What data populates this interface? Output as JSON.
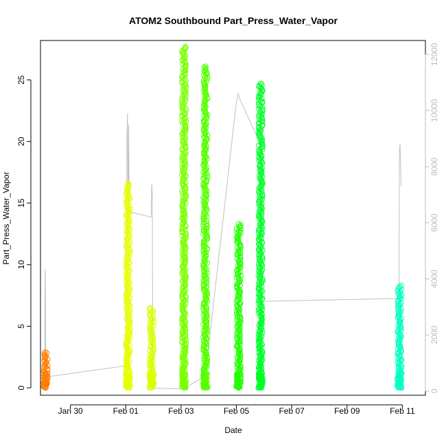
{
  "chart_data": {
    "type": "scatter",
    "title": "ATOM2 Southbound Part_Press_Water_Vapor",
    "xlabel": "Date",
    "ylabel": "Part_Press_Water_Vapor",
    "x_ticks": [
      "Jan 30",
      "Feb 01",
      "Feb 03",
      "Feb 05",
      "Feb 07",
      "Feb 09",
      "Feb 11"
    ],
    "y_ticks": [
      "0",
      "5",
      "10",
      "15",
      "20",
      "25"
    ],
    "y_right_ticks": [
      "0",
      "2000",
      "4000",
      "6000",
      "8000",
      "10000",
      "12000"
    ],
    "xlim": [
      "2020-01-28T22:00",
      "2020-02-11T20:00"
    ],
    "ylim": [
      -0.6,
      28.2
    ],
    "ylim_right": [
      -150,
      12500
    ],
    "colors": {
      "axis": "#000000",
      "right_axis": "#bbbbbb",
      "altitude_line": "#c0c0c0"
    },
    "bursts": [
      {
        "t": "2020-01-29T02:30",
        "y_min": 0.0,
        "y_max": 2.9,
        "color": "#ff7f00"
      },
      {
        "t": "2020-02-01T02:00",
        "y_min": 0.0,
        "y_max": 16.6,
        "color": "#e5ff00"
      },
      {
        "t": "2020-02-01T22:30",
        "y_min": 0.0,
        "y_max": 6.5,
        "color": "#d9ff00"
      },
      {
        "t": "2020-02-03T02:30",
        "y_min": 0.0,
        "y_max": 27.7,
        "color": "#7aff00"
      },
      {
        "t": "2020-02-03T21:00",
        "y_min": 0.0,
        "y_max": 26.1,
        "color": "#55ff00"
      },
      {
        "t": "2020-02-05T02:00",
        "y_min": 0.0,
        "y_max": 13.3,
        "color": "#22ff00"
      },
      {
        "t": "2020-02-05T21:00",
        "y_min": 0.0,
        "y_max": 24.7,
        "color": "#00ff2a"
      },
      {
        "t": "2020-02-10T21:30",
        "y_min": 0.0,
        "y_max": 8.3,
        "color": "#00ffbf"
      }
    ],
    "altitude_series": {
      "name": "",
      "axis": "right",
      "points": [
        [
          "2020-01-29T01:30",
          50
        ],
        [
          "2020-01-29T01:45",
          1300
        ],
        [
          "2020-01-29T02:00",
          3900
        ],
        [
          "2020-01-29T02:15",
          4350
        ],
        [
          "2020-01-29T02:30",
          1100
        ],
        [
          "2020-01-29T02:45",
          500
        ],
        [
          "2020-02-01T00:00",
          900
        ],
        [
          "2020-02-01T01:00",
          9100
        ],
        [
          "2020-02-01T01:30",
          9900
        ],
        [
          "2020-02-01T02:00",
          5500
        ],
        [
          "2020-02-01T02:30",
          9500
        ],
        [
          "2020-02-01T03:00",
          6400
        ],
        [
          "2020-02-01T22:00",
          6200
        ],
        [
          "2020-02-01T22:30",
          7400
        ],
        [
          "2020-02-01T23:00",
          7000
        ],
        [
          "2020-02-01T23:30",
          100
        ],
        [
          "2020-02-03T02:30",
          80
        ],
        [
          "2020-02-03T21:00",
          550
        ],
        [
          "2020-02-05T00:00",
          10300
        ],
        [
          "2020-02-05T01:30",
          10600
        ],
        [
          "2020-02-05T03:00",
          10400
        ],
        [
          "2020-02-05T21:00",
          8800
        ],
        [
          "2020-02-05T22:00",
          3200
        ],
        [
          "2020-02-10T21:00",
          3300
        ],
        [
          "2020-02-10T21:30",
          8600
        ],
        [
          "2020-02-10T22:00",
          8800
        ],
        [
          "2020-02-10T23:00",
          7300
        ]
      ]
    }
  }
}
